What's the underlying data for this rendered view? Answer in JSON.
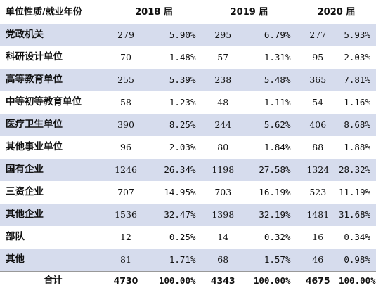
{
  "header": {
    "category_label": "单位性质/就业年份",
    "years": [
      "2018 届",
      "2019 届",
      "2020 届"
    ]
  },
  "rows": [
    {
      "name": "党政机关",
      "y2018": {
        "count": "279",
        "pct": "5.90%"
      },
      "y2019": {
        "count": "295",
        "pct": "6.79%"
      },
      "y2020": {
        "count": "277",
        "pct": "5.93%"
      }
    },
    {
      "name": "科研设计单位",
      "y2018": {
        "count": "70",
        "pct": "1.48%"
      },
      "y2019": {
        "count": "57",
        "pct": "1.31%"
      },
      "y2020": {
        "count": "95",
        "pct": "2.03%"
      }
    },
    {
      "name": "高等教育单位",
      "y2018": {
        "count": "255",
        "pct": "5.39%"
      },
      "y2019": {
        "count": "238",
        "pct": "5.48%"
      },
      "y2020": {
        "count": "365",
        "pct": "7.81%"
      }
    },
    {
      "name": "中等初等教育单位",
      "y2018": {
        "count": "58",
        "pct": "1.23%"
      },
      "y2019": {
        "count": "48",
        "pct": "1.11%"
      },
      "y2020": {
        "count": "54",
        "pct": "1.16%"
      }
    },
    {
      "name": "医疗卫生单位",
      "y2018": {
        "count": "390",
        "pct": "8.25%"
      },
      "y2019": {
        "count": "244",
        "pct": "5.62%"
      },
      "y2020": {
        "count": "406",
        "pct": "8.68%"
      }
    },
    {
      "name": "其他事业单位",
      "y2018": {
        "count": "96",
        "pct": "2.03%"
      },
      "y2019": {
        "count": "80",
        "pct": "1.84%"
      },
      "y2020": {
        "count": "88",
        "pct": "1.88%"
      }
    },
    {
      "name": "国有企业",
      "y2018": {
        "count": "1246",
        "pct": "26.34%"
      },
      "y2019": {
        "count": "1198",
        "pct": "27.58%"
      },
      "y2020": {
        "count": "1324",
        "pct": "28.32%"
      }
    },
    {
      "name": "三资企业",
      "y2018": {
        "count": "707",
        "pct": "14.95%"
      },
      "y2019": {
        "count": "703",
        "pct": "16.19%"
      },
      "y2020": {
        "count": "523",
        "pct": "11.19%"
      }
    },
    {
      "name": "其他企业",
      "y2018": {
        "count": "1536",
        "pct": "32.47%"
      },
      "y2019": {
        "count": "1398",
        "pct": "32.19%"
      },
      "y2020": {
        "count": "1481",
        "pct": "31.68%"
      }
    },
    {
      "name": "部队",
      "y2018": {
        "count": "12",
        "pct": "0.25%"
      },
      "y2019": {
        "count": "14",
        "pct": "0.32%"
      },
      "y2020": {
        "count": "16",
        "pct": "0.34%"
      }
    },
    {
      "name": "其他",
      "y2018": {
        "count": "81",
        "pct": "1.71%"
      },
      "y2019": {
        "count": "68",
        "pct": "1.57%"
      },
      "y2020": {
        "count": "46",
        "pct": "0.98%"
      }
    }
  ],
  "total": {
    "label": "合计",
    "y2018": {
      "count": "4730",
      "pct": "100.00%"
    },
    "y2019": {
      "count": "4343",
      "pct": "100.00%"
    },
    "y2020": {
      "count": "4675",
      "pct": "100.00%"
    }
  },
  "colors": {
    "band": "#d6dced",
    "plain": "#ffffff",
    "text": "#111111"
  }
}
